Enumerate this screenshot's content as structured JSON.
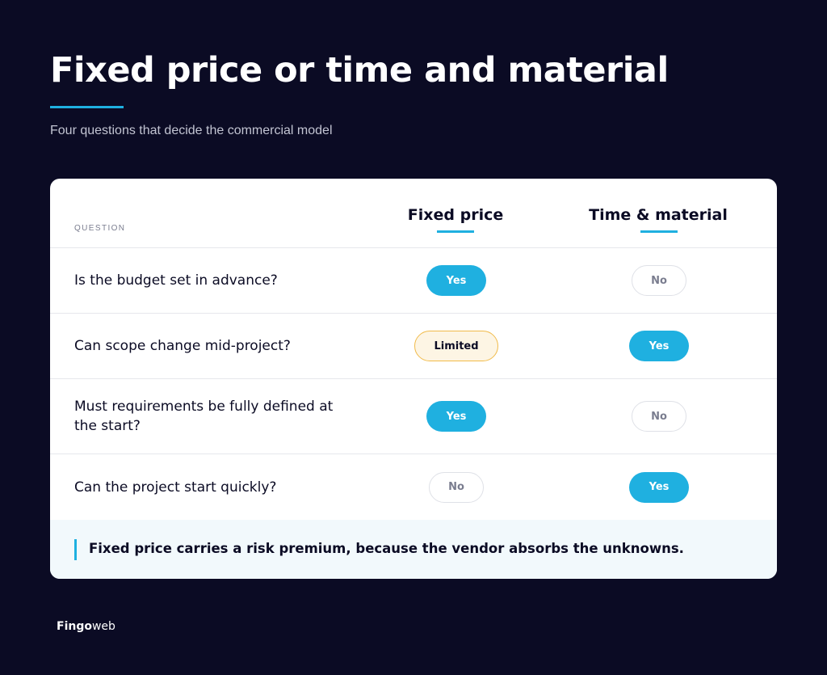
{
  "header": {
    "title": "Fixed price or time and material",
    "subtitle": "Four questions that decide the commercial model"
  },
  "table": {
    "question_label": "QUESTION",
    "columns": [
      "Fixed price",
      "Time & material"
    ],
    "rows": [
      {
        "question": "Is the budget set in advance?",
        "fixed_price": "Yes",
        "time_material": "No"
      },
      {
        "question": "Can scope change mid-project?",
        "fixed_price": "Limited",
        "time_material": "Yes"
      },
      {
        "question": "Must requirements be fully defined at the start?",
        "fixed_price": "Yes",
        "time_material": "No"
      },
      {
        "question": "Can the project start quickly?",
        "fixed_price": "No",
        "time_material": "Yes"
      }
    ]
  },
  "note": "Fixed price carries a risk premium, because the vendor absorbs the unknowns.",
  "logo": {
    "bold": "Fingo",
    "light": "web"
  },
  "colors": {
    "background": "#0b0b24",
    "accent": "#1fb0e0",
    "limited_border": "#f1bb4b",
    "note_background": "#f2f9fc"
  }
}
